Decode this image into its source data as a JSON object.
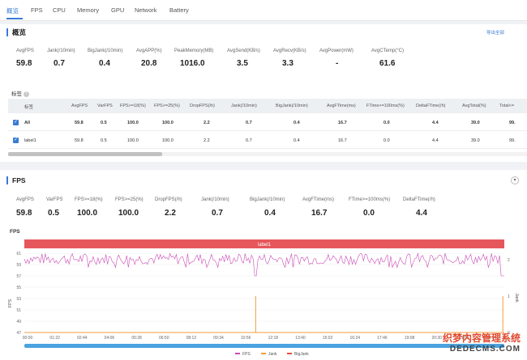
{
  "nav": {
    "tabs": [
      {
        "label": "概览",
        "active": true
      },
      {
        "label": "FPS"
      },
      {
        "label": "CPU"
      },
      {
        "label": "Memory"
      },
      {
        "label": "GPU"
      },
      {
        "label": "Network"
      },
      {
        "label": "Battery"
      }
    ]
  },
  "overview": {
    "title": "概览",
    "export": "导出全部",
    "metrics": [
      {
        "label": "AvgFPS",
        "value": "59.8"
      },
      {
        "label": "Jank(/10min)",
        "value": "0.7"
      },
      {
        "label": "BigJank(/10min)",
        "value": "0.4"
      },
      {
        "label": "AvgAPP(%)",
        "value": "20.8"
      },
      {
        "label": "PeakMemory(MB)",
        "value": "1016.0"
      },
      {
        "label": "AvgSend(KB/s)",
        "value": "3.5"
      },
      {
        "label": "AvgRecv(KB/s)",
        "value": "3.3"
      },
      {
        "label": "AvgPower(mW)",
        "value": "-"
      },
      {
        "label": "AvgCTemp(°C)",
        "value": "61.6"
      }
    ],
    "tags_label": "标签",
    "table": {
      "headers": [
        "标签",
        "AvgFPS",
        "VarFPS",
        "FPS>=18(%)",
        "FPS>=25(%)",
        "DropFPS(/h)",
        "Jank(/10min)",
        "BigJank(/10min)",
        "AvgFTime(ms)",
        "FTime>=100ms(%)",
        "DeltaFTime(/h)",
        "AvgTotal(%)",
        "Total<="
      ],
      "rows": [
        [
          "All",
          "59.8",
          "0.5",
          "100.0",
          "100.0",
          "2.2",
          "0.7",
          "0.4",
          "16.7",
          "0.0",
          "4.4",
          "39.0",
          "99."
        ],
        [
          "label1",
          "59.8",
          "0.5",
          "100.0",
          "100.0",
          "2.2",
          "0.7",
          "0.4",
          "16.7",
          "0.0",
          "4.4",
          "39.0",
          "99."
        ]
      ]
    }
  },
  "fps": {
    "title": "FPS",
    "metrics": [
      {
        "label": "AvgFPS",
        "value": "59.8"
      },
      {
        "label": "VarFPS",
        "value": "0.5"
      },
      {
        "label": "FPS>=18(%)",
        "value": "100.0"
      },
      {
        "label": "FPS>=25(%)",
        "value": "100.0"
      },
      {
        "label": "DropFPS(/h)",
        "value": "2.2"
      },
      {
        "label": "Jank(/10min)",
        "value": "0.7"
      },
      {
        "label": "BigJank(/10min)",
        "value": "0.4"
      },
      {
        "label": "AvgFTime(ms)",
        "value": "16.7"
      },
      {
        "label": "FTime>=100ms(%)",
        "value": "0.0"
      },
      {
        "label": "DeltaFTime(/h)",
        "value": "4.4"
      }
    ],
    "chart_title": "FPS",
    "band_label": "label1"
  },
  "chart_data": {
    "type": "line",
    "title": "FPS",
    "ylabel": "FPS",
    "y2label": "Jank",
    "ylim": [
      47,
      61
    ],
    "yticks": [
      47,
      49,
      51,
      53,
      55,
      57,
      59,
      61
    ],
    "y2ticks": [
      0,
      1,
      2
    ],
    "x_ticks": [
      "00:00",
      "01:22",
      "02:44",
      "04:06",
      "05:28",
      "06:50",
      "08:12",
      "09:34",
      "10:56",
      "12:18",
      "13:40",
      "15:02",
      "16:24",
      "17:46",
      "19:08",
      "20:30",
      "21:52",
      "23:14"
    ],
    "series": [
      {
        "name": "FPS",
        "color": "#c94ab5",
        "baseline": 60,
        "jitter": [
          59,
          61
        ],
        "dips": [
          {
            "x_frac": 0.482,
            "y": 57
          },
          {
            "x_frac": 0.997,
            "y": 57
          }
        ]
      },
      {
        "name": "Jank",
        "color": "#f39c3c",
        "spikes": [
          {
            "x_frac": 0.482,
            "value": 1
          },
          {
            "x_frac": 0.997,
            "value": 1
          }
        ]
      },
      {
        "name": "BigJank",
        "color": "#e74c3c",
        "spikes": []
      }
    ],
    "legend": "bottom-center",
    "grid": true
  },
  "watermark": {
    "line1": "织梦内容管理系统",
    "line2": "DEDECMS.COM"
  }
}
